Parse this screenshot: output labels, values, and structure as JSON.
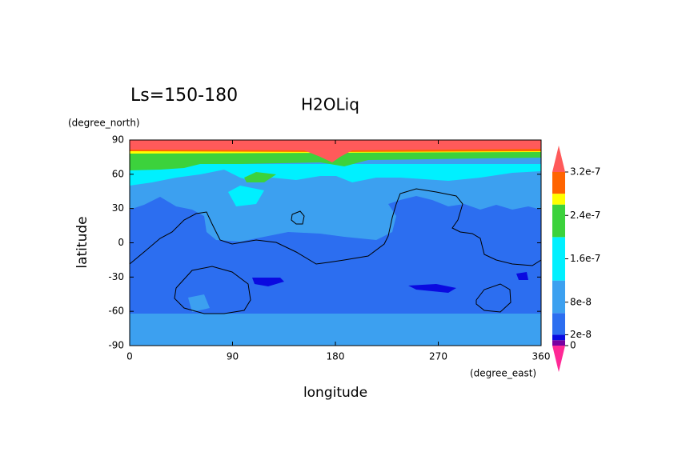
{
  "chart_data": {
    "type": "contour",
    "title": "H2OLiq",
    "annotation": "Ls=150-180",
    "x_label": "longitude",
    "y_label": "latitude",
    "x_unit": "(degree_east)",
    "y_unit": "(degree_north)",
    "xlim": [
      0,
      360
    ],
    "xticks": [
      0,
      90,
      180,
      270,
      360
    ],
    "ylim": [
      -90,
      90
    ],
    "yticks": [
      -90,
      -60,
      -30,
      0,
      30,
      60,
      90
    ],
    "clim": [
      0,
      3.2e-07
    ],
    "cticks": [
      0,
      2e-08,
      8e-08,
      1.6e-07,
      2.4e-07,
      3.2e-07
    ],
    "levels": [
      0,
      1e-08,
      2e-08,
      6e-08,
      1.2e-07,
      2e-07,
      2.6e-07,
      2.8e-07,
      3.2e-07
    ],
    "colors": [
      "#7800a0",
      "#0a0ae0",
      "#2c6ef0",
      "#3ca0f0",
      "#00f0ff",
      "#3cd23c",
      "#ffff00",
      "#ff6400"
    ],
    "under_color": "#ff2896",
    "over_color": "#ff5a5a"
  }
}
